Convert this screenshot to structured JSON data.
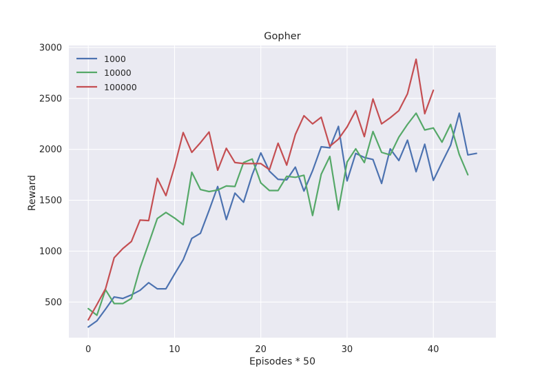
{
  "chart_data": {
    "type": "line",
    "title": "Gopher",
    "xlabel": "Episodes * 50",
    "ylabel": "Reward",
    "xlim": [
      -2.25,
      47.25
    ],
    "ylim": [
      150,
      3020
    ],
    "xticks": [
      0,
      10,
      20,
      30,
      40
    ],
    "yticks": [
      500,
      1000,
      1500,
      2000,
      2500,
      3000
    ],
    "grid": true,
    "legend_location": "upper-left",
    "series": [
      {
        "name": "1000",
        "color": "#4c72b0",
        "x": [
          0,
          1,
          2,
          3,
          4,
          5,
          6,
          7,
          8,
          9,
          10,
          11,
          12,
          13,
          14,
          15,
          16,
          17,
          18,
          19,
          20,
          21,
          22,
          23,
          24,
          25,
          26,
          27,
          28,
          29,
          30,
          31,
          32,
          33,
          34,
          35,
          36,
          37,
          38,
          39,
          40,
          41,
          42,
          43,
          44,
          45
        ],
        "values": [
          255,
          315,
          430,
          550,
          535,
          570,
          615,
          690,
          630,
          630,
          775,
          915,
          1125,
          1175,
          1400,
          1635,
          1310,
          1570,
          1480,
          1750,
          1965,
          1785,
          1705,
          1700,
          1825,
          1590,
          1790,
          2025,
          2015,
          2225,
          1690,
          1960,
          1920,
          1900,
          1665,
          2005,
          1890,
          2090,
          1780,
          2050,
          1695,
          1870,
          2040,
          2355,
          1945,
          1960
        ]
      },
      {
        "name": "10000",
        "color": "#55a868",
        "x": [
          0,
          1,
          2,
          3,
          4,
          5,
          6,
          7,
          8,
          9,
          10,
          11,
          12,
          13,
          14,
          15,
          16,
          17,
          18,
          19,
          20,
          21,
          22,
          23,
          24,
          25,
          26,
          27,
          28,
          29,
          30,
          31,
          32,
          33,
          34,
          35,
          36,
          37,
          38,
          39,
          40,
          41,
          42,
          43,
          44
        ],
        "values": [
          435,
          370,
          620,
          485,
          485,
          535,
          835,
          1075,
          1320,
          1380,
          1325,
          1260,
          1775,
          1605,
          1585,
          1600,
          1640,
          1635,
          1870,
          1905,
          1670,
          1595,
          1595,
          1735,
          1725,
          1745,
          1350,
          1755,
          1930,
          1405,
          1875,
          2005,
          1870,
          2175,
          1970,
          1945,
          2120,
          2245,
          2355,
          2190,
          2210,
          2070,
          2245,
          1950,
          1750
        ]
      },
      {
        "name": "100000",
        "color": "#c44e52",
        "x": [
          0,
          1,
          2,
          3,
          4,
          5,
          6,
          7,
          8,
          9,
          10,
          11,
          12,
          13,
          14,
          15,
          16,
          17,
          18,
          19,
          20,
          21,
          22,
          23,
          24,
          25,
          26,
          27,
          28,
          29,
          30,
          31,
          32,
          33,
          34,
          35,
          36,
          37,
          38,
          39,
          40
        ],
        "values": [
          325,
          475,
          630,
          935,
          1025,
          1095,
          1305,
          1300,
          1715,
          1545,
          1830,
          2165,
          1970,
          2065,
          2170,
          1795,
          2010,
          1870,
          1860,
          1860,
          1860,
          1800,
          2060,
          1845,
          2145,
          2330,
          2250,
          2315,
          2030,
          2100,
          2220,
          2380,
          2125,
          2495,
          2250,
          2310,
          2380,
          2545,
          2885,
          2350,
          2580
        ]
      }
    ]
  }
}
